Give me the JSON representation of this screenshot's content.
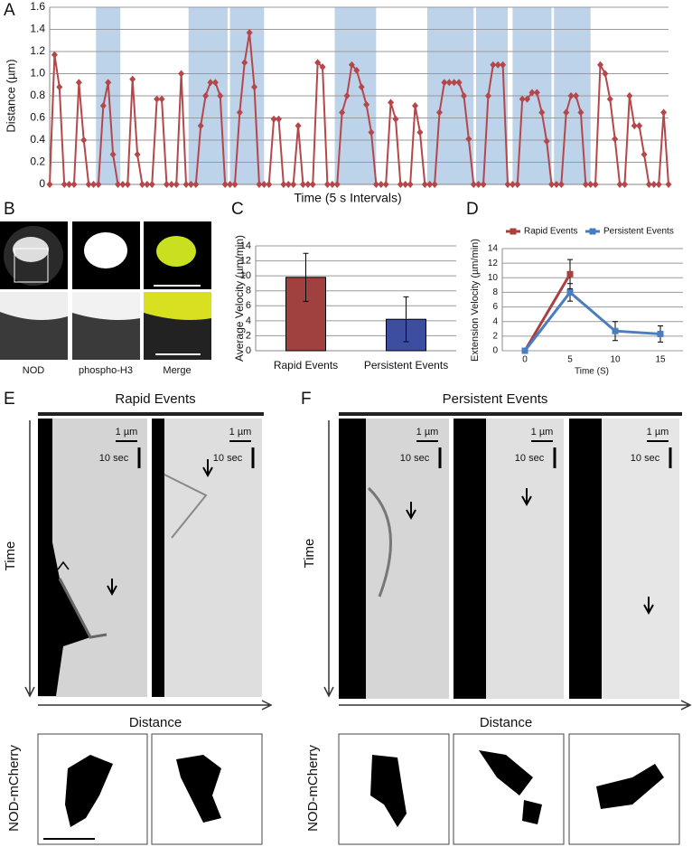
{
  "panel_letters": [
    "A",
    "B",
    "C",
    "D",
    "E",
    "F"
  ],
  "chart_data": [
    {
      "type": "line",
      "y_label": "Distance (µm)",
      "x_label": "Time (5 s Intervals)",
      "values": [
        0,
        1.17,
        0.88,
        0,
        0,
        0,
        0.92,
        0.4,
        0,
        0,
        0,
        0.71,
        0.92,
        0.27,
        0,
        0,
        0,
        0.95,
        0.27,
        0,
        0,
        0,
        0.77,
        0.77,
        0,
        0,
        0,
        1.0,
        0,
        0,
        0,
        0.53,
        0.8,
        0.92,
        0.92,
        0.8,
        0,
        0,
        0,
        0.65,
        1.1,
        1.37,
        0.88,
        0,
        0,
        0,
        0.59,
        0.59,
        0,
        0,
        0,
        0.53,
        0,
        0,
        0,
        1.1,
        1.06,
        0,
        0,
        0,
        0.65,
        0.8,
        1.08,
        1.03,
        0.88,
        0.72,
        0.47,
        0,
        0,
        0,
        0.74,
        0.59,
        0,
        0,
        0,
        0.71,
        0.47,
        0,
        0,
        0,
        0.65,
        0.92,
        0.92,
        0.92,
        0.92,
        0.8,
        0.41,
        0,
        0,
        0,
        0.8,
        1.08,
        1.08,
        1.08,
        0,
        0,
        0,
        0.77,
        0.77,
        0.83,
        0.83,
        0.65,
        0.39,
        0,
        0,
        0,
        0.65,
        0.8,
        0.8,
        0.65,
        0,
        0,
        0,
        1.08,
        1.0,
        0.77,
        0.41,
        0,
        0,
        0.8,
        0.53,
        0.53,
        0.27,
        0,
        0,
        0,
        0.65,
        0
      ],
      "color": "#b5474b",
      "marker": "diamond",
      "highlights": [
        [
          9.5,
          14.5
        ],
        [
          28.5,
          36.5
        ],
        [
          37,
          44
        ],
        [
          58.5,
          67
        ],
        [
          77.5,
          87
        ],
        [
          87.5,
          94
        ],
        [
          95,
          103
        ],
        [
          103.5,
          111
        ]
      ],
      "highlight_color": "#bcd3ea",
      "ylim": [
        0,
        1.6
      ],
      "yticks": [
        0,
        0.2,
        0.4,
        0.6,
        0.8,
        {
          "value": 1,
          "label": "1.0"
        },
        1.2,
        1.4,
        1.6
      ],
      "grid": true
    },
    {
      "type": "bar",
      "y_label": "Average Velocity (µm/min)",
      "categories": [
        "Rapid Events",
        "Persistent Events"
      ],
      "values": [
        9.8,
        4.2
      ],
      "errors": [
        3.2,
        3.0
      ],
      "colors": [
        "#a0403f",
        "#3d4ea0"
      ],
      "ylim": [
        0,
        14
      ],
      "yticks": [
        0,
        2,
        4,
        6,
        8,
        10,
        12,
        14
      ],
      "grid": true
    },
    {
      "type": "line",
      "y_label": "Extension Velocity (µm/min)",
      "x_label": "Time (S)",
      "categories": [
        "0",
        "5",
        "10",
        "15"
      ],
      "series": [
        {
          "name": "Rapid Events",
          "color": "#a8403f",
          "marker": "square",
          "values": [
            0,
            10.5,
            null,
            null
          ],
          "errors": [
            null,
            2,
            null,
            null
          ]
        },
        {
          "name": "Persistent Events",
          "color": "#4a7cc0",
          "marker": "square",
          "values": [
            0,
            8,
            2.7,
            2.3
          ],
          "errors": [
            null,
            1.2,
            1.3,
            1.1
          ]
        }
      ],
      "ylim": [
        0,
        14
      ],
      "yticks": [
        0,
        2,
        4,
        6,
        8,
        10,
        12,
        14
      ],
      "grid": true,
      "legend": "top"
    }
  ],
  "panel_b": {
    "labels": [
      "NOD",
      "phospho-H3",
      "Merge"
    ]
  },
  "panel_e": {
    "title": "Rapid Events",
    "y_label": "Time",
    "x_label": "Distance",
    "row_label": "NOD-mCherry",
    "scale_bars": [
      {
        "length": "1 µm",
        "time": "10 sec"
      },
      {
        "length": "1 µm",
        "time": "10 sec"
      }
    ]
  },
  "panel_f": {
    "title": "Persistent Events",
    "y_label": "Time",
    "x_label": "Distance",
    "row_label": "NOD-mCherry",
    "scale_bars": [
      {
        "length": "1 µm",
        "time": "10 sec"
      },
      {
        "length": "1 µm",
        "time": "10 sec"
      },
      {
        "length": "1 µm",
        "time": "10 sec"
      }
    ]
  }
}
